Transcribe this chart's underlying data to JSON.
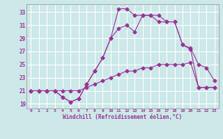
{
  "xlabel": "Windchill (Refroidissement éolien,°C)",
  "background_color": "#cce8e8",
  "grid_color": "#ffffff",
  "line_color": "#993399",
  "spine_color": "#aaaaaa",
  "x_ticks": [
    0,
    1,
    2,
    3,
    4,
    5,
    6,
    7,
    8,
    9,
    10,
    11,
    12,
    13,
    14,
    15,
    16,
    17,
    18,
    19,
    20,
    21,
    22,
    23
  ],
  "y_ticks": [
    19,
    21,
    23,
    25,
    27,
    29,
    31,
    33
  ],
  "xlim": [
    -0.5,
    23.5
  ],
  "ylim": [
    18.3,
    34.2
  ],
  "series": [
    {
      "x": [
        0,
        1,
        2,
        3,
        4,
        5,
        6,
        7,
        8,
        9,
        10,
        11,
        12,
        13,
        14,
        15,
        16,
        17,
        18,
        19,
        20,
        21,
        22,
        23
      ],
      "y": [
        21,
        21,
        21,
        21,
        20,
        19.3,
        19.8,
        22,
        24,
        26,
        29,
        33.5,
        33.5,
        32.5,
        32.5,
        32.5,
        31.5,
        31.5,
        31.5,
        28,
        27.5,
        25,
        24.5,
        22.5
      ]
    },
    {
      "x": [
        0,
        1,
        2,
        3,
        4,
        5,
        6,
        7,
        8,
        9,
        10,
        11,
        12,
        13,
        14,
        15,
        16,
        17,
        18,
        19,
        20,
        21,
        22,
        23
      ],
      "y": [
        21,
        21,
        21,
        21,
        20,
        19.3,
        19.8,
        22,
        24,
        26,
        29,
        30.5,
        31,
        30,
        32.5,
        32.5,
        32.5,
        31.5,
        31.5,
        28,
        27.3,
        21.5,
        21.5,
        21.5
      ]
    },
    {
      "x": [
        0,
        1,
        2,
        3,
        4,
        5,
        6,
        7,
        8,
        9,
        10,
        11,
        12,
        13,
        14,
        15,
        16,
        17,
        18,
        19,
        20,
        21,
        22,
        23
      ],
      "y": [
        21,
        21,
        21,
        21,
        21,
        21,
        21,
        21.5,
        22,
        22.5,
        23,
        23.5,
        24,
        24,
        24.5,
        24.5,
        25,
        25,
        25,
        25,
        25.3,
        21.5,
        21.5,
        21.5
      ]
    }
  ]
}
